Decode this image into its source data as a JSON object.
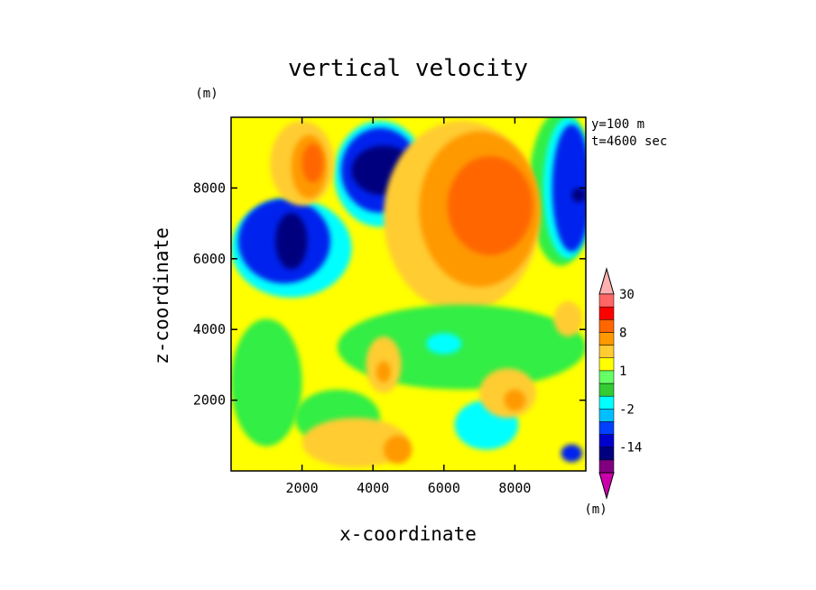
{
  "chart_data": {
    "type": "heatmap",
    "title": "vertical velocity",
    "xlabel": "x-coordinate",
    "ylabel": "z-coordinate",
    "y_unit": "(m)",
    "info_lines": [
      "y=100 m",
      "t=4600 sec"
    ],
    "xlim": [
      0,
      10000
    ],
    "ylim": [
      0,
      10000
    ],
    "x_ticks": [
      2000,
      4000,
      6000,
      8000
    ],
    "y_ticks": [
      2000,
      4000,
      6000,
      8000
    ],
    "colorbar": {
      "unit": "(m)",
      "tick_labels": [
        "30",
        "8",
        "1",
        "-2",
        "-14"
      ],
      "levels": [
        -30,
        -20,
        -14,
        -8,
        -4,
        -2,
        -1,
        0,
        1,
        2,
        4,
        8,
        14,
        20,
        30
      ],
      "colors": [
        "#cc00aa",
        "#800080",
        "#00007f",
        "#0000cc",
        "#0040ff",
        "#00bfff",
        "#00ffff",
        "#33cc33",
        "#66ff66",
        "#ffff00",
        "#ffcc33",
        "#ff9900",
        "#ff6600",
        "#ff0000",
        "#ff6666",
        "#ffb0b0"
      ]
    },
    "field_colors": {
      "darkblue": "#00007f",
      "blue": "#0022ee",
      "cyan": "#00ffff",
      "green": "#33ee44",
      "yellow": "#ffff00",
      "lightorange": "#ffcc33",
      "orange": "#ff9900",
      "darkorange": "#ff6600"
    },
    "regions": [
      {
        "level": "cyan",
        "cx": 1700,
        "cy": 6300,
        "rx": 1700,
        "ry": 1400
      },
      {
        "level": "blue",
        "cx": 1500,
        "cy": 6500,
        "rx": 1300,
        "ry": 1200
      },
      {
        "level": "darkblue",
        "cx": 1700,
        "cy": 6500,
        "rx": 450,
        "ry": 800
      },
      {
        "level": "cyan",
        "cx": 4200,
        "cy": 8400,
        "rx": 1300,
        "ry": 1500
      },
      {
        "level": "blue",
        "cx": 4200,
        "cy": 8500,
        "rx": 1100,
        "ry": 1200
      },
      {
        "level": "darkblue",
        "cx": 4300,
        "cy": 8500,
        "rx": 900,
        "ry": 700
      },
      {
        "level": "green",
        "cx": 9300,
        "cy": 8000,
        "rx": 900,
        "ry": 2200
      },
      {
        "level": "cyan",
        "cx": 9500,
        "cy": 8000,
        "rx": 700,
        "ry": 2000
      },
      {
        "level": "blue",
        "cx": 9600,
        "cy": 8000,
        "rx": 550,
        "ry": 1800
      },
      {
        "level": "darkblue",
        "cx": 9800,
        "cy": 7800,
        "rx": 200,
        "ry": 200
      },
      {
        "level": "lightorange",
        "cx": 6500,
        "cy": 7200,
        "rx": 2200,
        "ry": 2700
      },
      {
        "level": "orange",
        "cx": 7000,
        "cy": 7400,
        "rx": 1700,
        "ry": 2200
      },
      {
        "level": "darkorange",
        "cx": 7300,
        "cy": 7500,
        "rx": 1200,
        "ry": 1400
      },
      {
        "level": "lightorange",
        "cx": 2000,
        "cy": 8700,
        "rx": 900,
        "ry": 1200
      },
      {
        "level": "orange",
        "cx": 2200,
        "cy": 8600,
        "rx": 500,
        "ry": 900
      },
      {
        "level": "darkorange",
        "cx": 2300,
        "cy": 8700,
        "rx": 300,
        "ry": 550
      },
      {
        "level": "green",
        "cx": 6500,
        "cy": 3500,
        "rx": 3500,
        "ry": 1200
      },
      {
        "level": "green",
        "cx": 1000,
        "cy": 2500,
        "rx": 1000,
        "ry": 1800
      },
      {
        "level": "green",
        "cx": 3000,
        "cy": 1500,
        "rx": 1200,
        "ry": 800
      },
      {
        "level": "cyan",
        "cx": 6000,
        "cy": 3600,
        "rx": 500,
        "ry": 300
      },
      {
        "level": "cyan",
        "cx": 7200,
        "cy": 1300,
        "rx": 900,
        "ry": 700
      },
      {
        "level": "blue",
        "cx": 9600,
        "cy": 500,
        "rx": 300,
        "ry": 250
      },
      {
        "level": "lightorange",
        "cx": 3500,
        "cy": 800,
        "rx": 1500,
        "ry": 700
      },
      {
        "level": "orange",
        "cx": 4700,
        "cy": 600,
        "rx": 400,
        "ry": 400
      },
      {
        "level": "lightorange",
        "cx": 4300,
        "cy": 3000,
        "rx": 500,
        "ry": 800
      },
      {
        "level": "orange",
        "cx": 4300,
        "cy": 2800,
        "rx": 200,
        "ry": 300
      },
      {
        "level": "lightorange",
        "cx": 7800,
        "cy": 2200,
        "rx": 800,
        "ry": 700
      },
      {
        "level": "orange",
        "cx": 8000,
        "cy": 2000,
        "rx": 300,
        "ry": 300
      },
      {
        "level": "lightorange",
        "cx": 9500,
        "cy": 4300,
        "rx": 400,
        "ry": 500
      }
    ]
  }
}
